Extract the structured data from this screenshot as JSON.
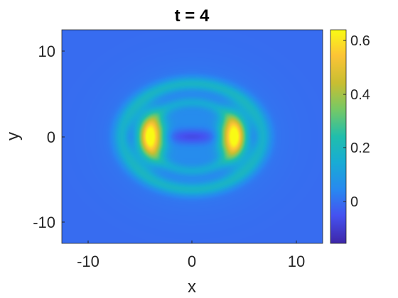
{
  "chart_data": {
    "type": "heatmap",
    "title": "t = 4",
    "xlabel": "x",
    "ylabel": "y",
    "xlim": [
      -12.5,
      12.5
    ],
    "ylim": [
      -12.5,
      12.5
    ],
    "xticks": [
      -10,
      0,
      10
    ],
    "xtick_labels": [
      "-10",
      "0",
      "10"
    ],
    "yticks": [
      10,
      0,
      -10
    ],
    "ytick_labels": [
      "10",
      "0",
      "-10"
    ],
    "colorbar": {
      "colormap": "parula",
      "clim": [
        -0.15,
        0.65
      ],
      "ticks": [
        0.6,
        0.4,
        0.2,
        0
      ],
      "tick_labels": [
        "0.6",
        "0.4",
        "0.2",
        "0"
      ]
    },
    "background_value": 0,
    "features": [
      {
        "name": "right-lobe",
        "cx": 4,
        "cy": 0,
        "value": 0.63
      },
      {
        "name": "left-lobe",
        "cx": -4,
        "cy": 0,
        "value": 0.63
      },
      {
        "name": "central-depression",
        "cx": 0,
        "cy": 0,
        "value": -0.12
      },
      {
        "name": "outer-ring",
        "cx": 0,
        "cy": 0,
        "radius": 6.5,
        "value": 0.2
      },
      {
        "name": "inner-ring",
        "cx": 0,
        "cy": 0,
        "radius": 3.8,
        "value": 0.28
      }
    ],
    "grid": false
  },
  "colors": {
    "background_field": "#4169f2",
    "axis": "#262626"
  }
}
